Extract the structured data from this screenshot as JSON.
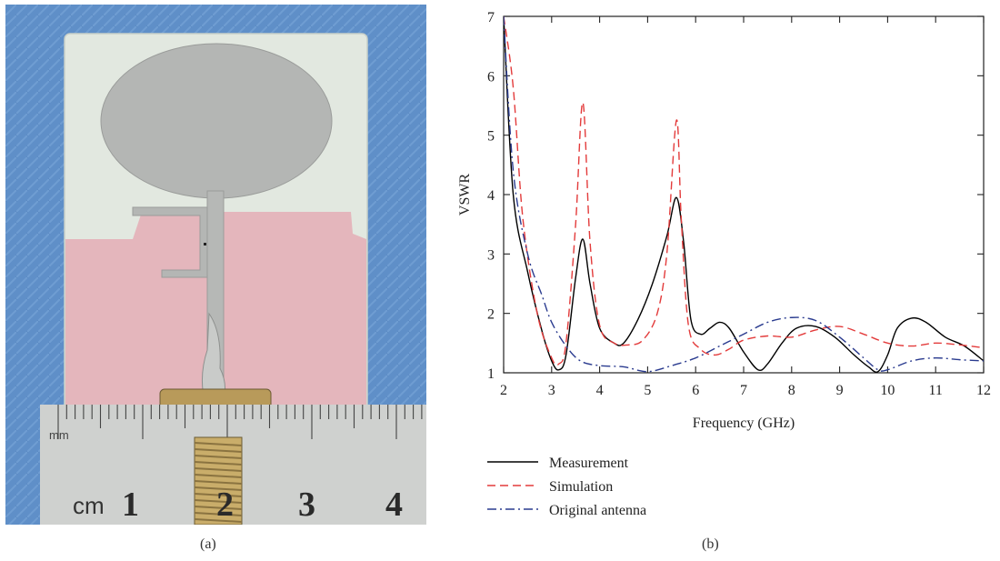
{
  "panels": {
    "left_caption": "(a)",
    "right_caption": "(b)"
  },
  "photo": {
    "ruler_unit_mm": "mm",
    "ruler_unit_cm": "cm",
    "ruler_numbers": [
      "1",
      "2",
      "3",
      "4"
    ],
    "colors": {
      "background": "#5f8fc8",
      "board": "#e2e8e0",
      "ground": "#e4b6bc",
      "metal": "#b4b6b4",
      "ruler": "#cfd1cf",
      "connector": "#b89a5a"
    }
  },
  "chart_data": {
    "type": "line",
    "title": "",
    "xlabel": "Frequency (GHz)",
    "ylabel": "VSWR",
    "xlim": [
      2,
      12
    ],
    "ylim": [
      1,
      7
    ],
    "xticks": [
      2,
      3,
      4,
      5,
      6,
      7,
      8,
      9,
      10,
      11,
      12
    ],
    "yticks": [
      1,
      2,
      3,
      4,
      5,
      6,
      7
    ],
    "grid": false,
    "legend_placement": "below",
    "series": [
      {
        "name": "Measurement",
        "color": "#000000",
        "dash": "solid",
        "x": [
          2.0,
          2.2,
          2.5,
          2.8,
          3.0,
          3.15,
          3.3,
          3.5,
          3.65,
          3.8,
          4.0,
          4.3,
          4.5,
          4.8,
          5.1,
          5.4,
          5.6,
          5.75,
          5.9,
          6.1,
          6.3,
          6.5,
          6.7,
          7.0,
          7.3,
          7.5,
          7.8,
          8.1,
          8.5,
          8.9,
          9.3,
          9.6,
          9.8,
          10.0,
          10.2,
          10.5,
          10.8,
          11.2,
          11.6,
          12.0
        ],
        "y": [
          7.0,
          4.0,
          2.7,
          1.7,
          1.2,
          1.05,
          1.3,
          2.6,
          3.25,
          2.5,
          1.75,
          1.5,
          1.5,
          1.9,
          2.5,
          3.3,
          3.95,
          3.2,
          1.9,
          1.65,
          1.75,
          1.85,
          1.75,
          1.35,
          1.05,
          1.15,
          1.5,
          1.75,
          1.78,
          1.6,
          1.3,
          1.1,
          1.02,
          1.3,
          1.75,
          1.92,
          1.85,
          1.6,
          1.45,
          1.2
        ]
      },
      {
        "name": "Simulation",
        "color": "#e33b3b",
        "dash": "dashed",
        "x": [
          2.0,
          2.2,
          2.4,
          2.7,
          3.0,
          3.15,
          3.3,
          3.5,
          3.65,
          3.8,
          4.0,
          4.3,
          4.6,
          4.9,
          5.2,
          5.4,
          5.6,
          5.7,
          5.85,
          6.1,
          6.4,
          6.7,
          7.0,
          7.5,
          8.0,
          8.5,
          9.0,
          9.5,
          10.0,
          10.5,
          11.0,
          11.5,
          12.0
        ],
        "y": [
          7.0,
          5.8,
          3.6,
          2.0,
          1.25,
          1.15,
          1.5,
          3.5,
          5.55,
          3.2,
          1.8,
          1.5,
          1.47,
          1.55,
          2.0,
          3.0,
          5.25,
          3.6,
          1.8,
          1.4,
          1.3,
          1.4,
          1.55,
          1.62,
          1.6,
          1.72,
          1.78,
          1.65,
          1.5,
          1.45,
          1.5,
          1.47,
          1.42
        ]
      },
      {
        "name": "Original antenna",
        "color": "#2a3b8f",
        "dash": "dashdot",
        "x": [
          2.0,
          2.2,
          2.5,
          2.8,
          3.0,
          3.3,
          3.6,
          4.0,
          4.5,
          5.0,
          5.5,
          6.0,
          6.5,
          7.0,
          7.5,
          8.0,
          8.5,
          9.0,
          9.5,
          9.8,
          10.0,
          10.5,
          11.0,
          11.5,
          12.0
        ],
        "y": [
          7.0,
          4.4,
          3.0,
          2.3,
          1.85,
          1.45,
          1.2,
          1.12,
          1.1,
          1.02,
          1.12,
          1.25,
          1.45,
          1.65,
          1.85,
          1.93,
          1.88,
          1.6,
          1.25,
          1.05,
          1.05,
          1.2,
          1.25,
          1.22,
          1.2
        ]
      }
    ]
  }
}
